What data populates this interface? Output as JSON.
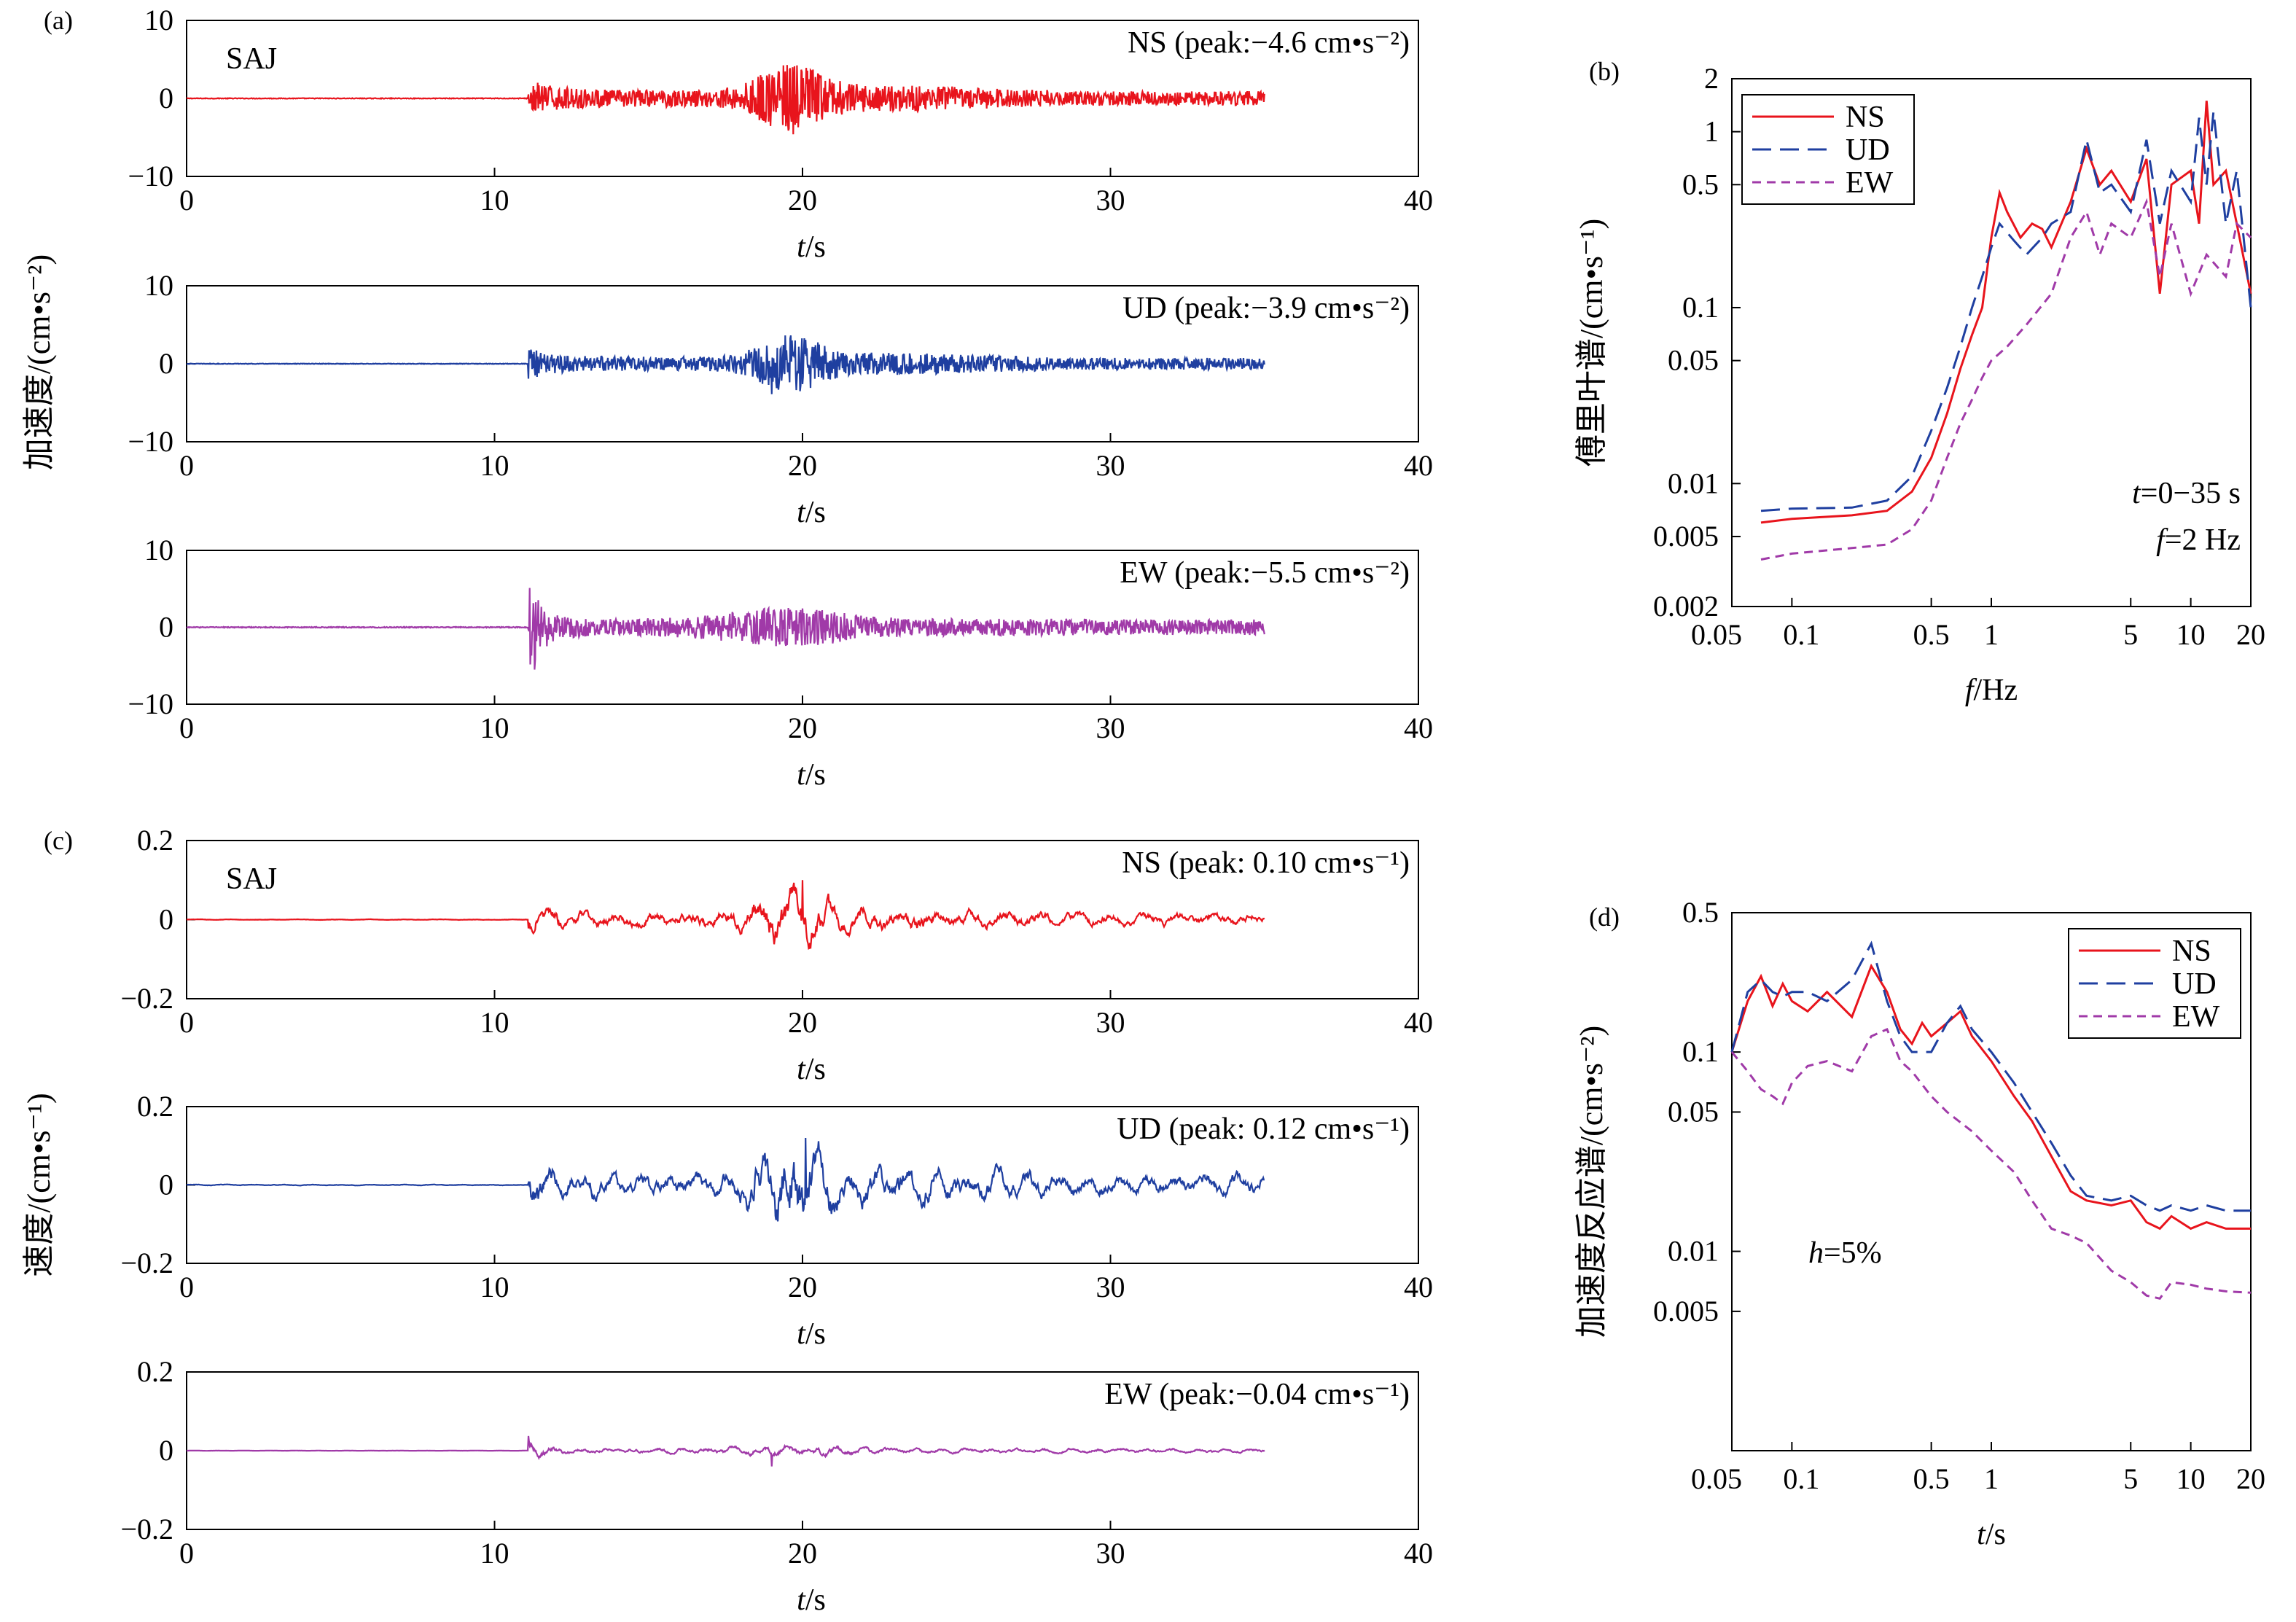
{
  "chart_data": [
    {
      "id": "a",
      "panel_label": "(a)",
      "station": "SAJ",
      "type": "line",
      "ylabel": "加速度/(cm•s⁻²)",
      "subplots": [
        {
          "component": "NS",
          "annotation": "NS (peak:−4.6 cm•s⁻²)",
          "color": "#e8141c",
          "peak": -4.6,
          "peak_time": 19.7,
          "ylim": [
            -10,
            10
          ],
          "yticks": [
            "10",
            "0",
            "−10"
          ],
          "xlim": [
            0,
            40
          ],
          "xticks": [
            "0",
            "10",
            "20",
            "30",
            "40"
          ],
          "xlabel": "t/s"
        },
        {
          "component": "UD",
          "annotation": "UD (peak:−3.9 cm•s⁻²)",
          "color": "#1f3fa0",
          "peak": -3.9,
          "peak_time": 19.0,
          "ylim": [
            -10,
            10
          ],
          "yticks": [
            "10",
            "0",
            "−10"
          ],
          "xlim": [
            0,
            40
          ],
          "xticks": [
            "0",
            "10",
            "20",
            "30",
            "40"
          ],
          "xlabel": "t/s"
        },
        {
          "component": "EW",
          "annotation": "EW (peak:−5.5 cm•s⁻²)",
          "color": "#a03aa8",
          "peak": -5.5,
          "peak_time": 11.3,
          "ylim": [
            -10,
            10
          ],
          "yticks": [
            "10",
            "0",
            "−10"
          ],
          "xlim": [
            0,
            40
          ],
          "xticks": [
            "0",
            "10",
            "20",
            "30",
            "40"
          ],
          "xlabel": "t/s"
        }
      ]
    },
    {
      "id": "b",
      "panel_label": "(b)",
      "type": "line",
      "xscale": "log",
      "yscale": "log",
      "xlim": [
        0.05,
        20
      ],
      "ylim": [
        0.002,
        2
      ],
      "xticks": [
        {
          "v": 0.05,
          "l": "0.05"
        },
        {
          "v": 0.1,
          "l": "0.1"
        },
        {
          "v": 0.5,
          "l": "0.5"
        },
        {
          "v": 1,
          "l": "1"
        },
        {
          "v": 5,
          "l": "5"
        },
        {
          "v": 10,
          "l": "10"
        },
        {
          "v": 20,
          "l": "20"
        }
      ],
      "yticks": [
        {
          "v": 0.002,
          "l": "0.002"
        },
        {
          "v": 0.005,
          "l": "0.005"
        },
        {
          "v": 0.01,
          "l": "0.01"
        },
        {
          "v": 0.05,
          "l": "0.05"
        },
        {
          "v": 0.1,
          "l": "0.1"
        },
        {
          "v": 0.5,
          "l": "0.5"
        },
        {
          "v": 1,
          "l": "1"
        },
        {
          "v": 2,
          "l": "2"
        }
      ],
      "xlabel": "f/Hz",
      "ylabel": "傅里叶谱/(cm•s⁻¹)",
      "annotations": [
        "t=0−35 s",
        "f=2 Hz"
      ],
      "legend": "top-left",
      "series": [
        {
          "name": "NS",
          "color": "#e8141c",
          "dash": "solid",
          "points": [
            [
              0.07,
              0.006
            ],
            [
              0.1,
              0.0063
            ],
            [
              0.2,
              0.0066
            ],
            [
              0.3,
              0.007
            ],
            [
              0.4,
              0.009
            ],
            [
              0.5,
              0.014
            ],
            [
              0.6,
              0.025
            ],
            [
              0.7,
              0.045
            ],
            [
              0.8,
              0.07
            ],
            [
              0.9,
              0.1
            ],
            [
              1.0,
              0.25
            ],
            [
              1.1,
              0.45
            ],
            [
              1.2,
              0.35
            ],
            [
              1.4,
              0.25
            ],
            [
              1.6,
              0.3
            ],
            [
              1.8,
              0.28
            ],
            [
              2.0,
              0.22
            ],
            [
              2.5,
              0.4
            ],
            [
              3.0,
              0.8
            ],
            [
              3.5,
              0.5
            ],
            [
              4.0,
              0.6
            ],
            [
              5.0,
              0.4
            ],
            [
              6.0,
              0.7
            ],
            [
              7.0,
              0.12
            ],
            [
              8.0,
              0.5
            ],
            [
              10,
              0.6
            ],
            [
              11,
              0.3
            ],
            [
              12,
              1.5
            ],
            [
              13,
              0.5
            ],
            [
              15,
              0.6
            ],
            [
              17,
              0.3
            ],
            [
              20,
              0.12
            ]
          ]
        },
        {
          "name": "UD",
          "color": "#1f3fa0",
          "dash": "long",
          "points": [
            [
              0.07,
              0.007
            ],
            [
              0.1,
              0.0072
            ],
            [
              0.2,
              0.0073
            ],
            [
              0.3,
              0.008
            ],
            [
              0.4,
              0.011
            ],
            [
              0.5,
              0.02
            ],
            [
              0.6,
              0.035
            ],
            [
              0.7,
              0.06
            ],
            [
              0.8,
              0.1
            ],
            [
              0.9,
              0.15
            ],
            [
              1.0,
              0.22
            ],
            [
              1.1,
              0.3
            ],
            [
              1.3,
              0.24
            ],
            [
              1.5,
              0.2
            ],
            [
              1.8,
              0.25
            ],
            [
              2.0,
              0.3
            ],
            [
              2.5,
              0.35
            ],
            [
              3.0,
              0.9
            ],
            [
              3.5,
              0.45
            ],
            [
              4.0,
              0.5
            ],
            [
              5.0,
              0.35
            ],
            [
              6.0,
              0.9
            ],
            [
              7.0,
              0.3
            ],
            [
              8.0,
              0.6
            ],
            [
              10,
              0.4
            ],
            [
              11,
              1.2
            ],
            [
              12,
              0.5
            ],
            [
              13,
              1.3
            ],
            [
              15,
              0.3
            ],
            [
              17,
              0.6
            ],
            [
              20,
              0.1
            ]
          ]
        },
        {
          "name": "EW",
          "color": "#a03aa8",
          "dash": "short",
          "points": [
            [
              0.07,
              0.0037
            ],
            [
              0.1,
              0.004
            ],
            [
              0.2,
              0.0043
            ],
            [
              0.3,
              0.0045
            ],
            [
              0.4,
              0.0055
            ],
            [
              0.5,
              0.008
            ],
            [
              0.6,
              0.014
            ],
            [
              0.7,
              0.022
            ],
            [
              0.8,
              0.03
            ],
            [
              0.9,
              0.04
            ],
            [
              1.0,
              0.05
            ],
            [
              1.2,
              0.06
            ],
            [
              1.5,
              0.08
            ],
            [
              2.0,
              0.12
            ],
            [
              2.5,
              0.25
            ],
            [
              3.0,
              0.35
            ],
            [
              3.5,
              0.2
            ],
            [
              4.0,
              0.3
            ],
            [
              5.0,
              0.25
            ],
            [
              6.0,
              0.4
            ],
            [
              7.0,
              0.15
            ],
            [
              8.0,
              0.3
            ],
            [
              10,
              0.12
            ],
            [
              12,
              0.2
            ],
            [
              15,
              0.15
            ],
            [
              17,
              0.3
            ],
            [
              20,
              0.25
            ]
          ]
        }
      ]
    },
    {
      "id": "c",
      "panel_label": "(c)",
      "station": "SAJ",
      "type": "line",
      "ylabel": "速度/(cm•s⁻¹)",
      "subplots": [
        {
          "component": "NS",
          "annotation": "NS (peak: 0.10 cm•s⁻¹)",
          "color": "#e8141c",
          "peak": 0.1,
          "peak_time": 20.0,
          "ylim": [
            -0.2,
            0.2
          ],
          "yticks": [
            "0.2",
            "0",
            "−0.2"
          ],
          "xlim": [
            0,
            40
          ],
          "xticks": [
            "0",
            "10",
            "20",
            "30",
            "40"
          ],
          "xlabel": "t/s"
        },
        {
          "component": "UD",
          "annotation": "UD (peak: 0.12 cm•s⁻¹)",
          "color": "#1f3fa0",
          "peak": 0.12,
          "peak_time": 20.1,
          "ylim": [
            -0.2,
            0.2
          ],
          "yticks": [
            "0.2",
            "0",
            "−0.2"
          ],
          "xlim": [
            0,
            40
          ],
          "xticks": [
            "0",
            "10",
            "20",
            "30",
            "40"
          ],
          "xlabel": "t/s"
        },
        {
          "component": "EW",
          "annotation": "EW (peak:−0.04 cm•s⁻¹)",
          "color": "#a03aa8",
          "peak": -0.04,
          "peak_time": 19.0,
          "ylim": [
            -0.2,
            0.2
          ],
          "yticks": [
            "0.2",
            "0",
            "−0.2"
          ],
          "xlim": [
            0,
            40
          ],
          "xticks": [
            "0",
            "10",
            "20",
            "30",
            "40"
          ],
          "xlabel": "t/s"
        }
      ]
    },
    {
      "id": "d",
      "panel_label": "(d)",
      "type": "line",
      "xscale": "log",
      "yscale": "log",
      "xlim": [
        0.05,
        20
      ],
      "ylim": [
        0.001,
        0.5
      ],
      "xticks": [
        {
          "v": 0.05,
          "l": "0.05"
        },
        {
          "v": 0.1,
          "l": "0.1"
        },
        {
          "v": 0.5,
          "l": "0.5"
        },
        {
          "v": 1,
          "l": "1"
        },
        {
          "v": 5,
          "l": "5"
        },
        {
          "v": 10,
          "l": "10"
        },
        {
          "v": 20,
          "l": "20"
        }
      ],
      "yticks": [
        {
          "v": 0.005,
          "l": "0.005"
        },
        {
          "v": 0.01,
          "l": "0.01"
        },
        {
          "v": 0.05,
          "l": "0.05"
        },
        {
          "v": 0.1,
          "l": "0.1"
        },
        {
          "v": 0.5,
          "l": "0.5"
        }
      ],
      "xlabel": "t/s",
      "ylabel": "加速度反应谱/(cm•s⁻²)",
      "annotations": [
        "h=5%"
      ],
      "legend": "top-right",
      "series": [
        {
          "name": "NS",
          "color": "#e8141c",
          "dash": "solid",
          "points": [
            [
              0.05,
              0.1
            ],
            [
              0.06,
              0.18
            ],
            [
              0.07,
              0.24
            ],
            [
              0.08,
              0.17
            ],
            [
              0.09,
              0.22
            ],
            [
              0.1,
              0.18
            ],
            [
              0.12,
              0.16
            ],
            [
              0.15,
              0.2
            ],
            [
              0.2,
              0.15
            ],
            [
              0.25,
              0.27
            ],
            [
              0.3,
              0.2
            ],
            [
              0.35,
              0.13
            ],
            [
              0.4,
              0.11
            ],
            [
              0.45,
              0.14
            ],
            [
              0.5,
              0.12
            ],
            [
              0.6,
              0.14
            ],
            [
              0.7,
              0.16
            ],
            [
              0.8,
              0.12
            ],
            [
              1.0,
              0.09
            ],
            [
              1.3,
              0.06
            ],
            [
              1.6,
              0.045
            ],
            [
              2.0,
              0.03
            ],
            [
              2.5,
              0.02
            ],
            [
              3.0,
              0.018
            ],
            [
              4.0,
              0.017
            ],
            [
              5.0,
              0.018
            ],
            [
              6.0,
              0.014
            ],
            [
              7.0,
              0.013
            ],
            [
              8.0,
              0.015
            ],
            [
              10,
              0.013
            ],
            [
              12,
              0.014
            ],
            [
              15,
              0.013
            ],
            [
              20,
              0.013
            ]
          ]
        },
        {
          "name": "UD",
          "color": "#1f3fa0",
          "dash": "long",
          "points": [
            [
              0.05,
              0.1
            ],
            [
              0.06,
              0.2
            ],
            [
              0.07,
              0.23
            ],
            [
              0.08,
              0.2
            ],
            [
              0.09,
              0.19
            ],
            [
              0.1,
              0.2
            ],
            [
              0.12,
              0.2
            ],
            [
              0.15,
              0.18
            ],
            [
              0.2,
              0.23
            ],
            [
              0.25,
              0.35
            ],
            [
              0.3,
              0.18
            ],
            [
              0.35,
              0.12
            ],
            [
              0.4,
              0.1
            ],
            [
              0.45,
              0.1
            ],
            [
              0.5,
              0.1
            ],
            [
              0.6,
              0.14
            ],
            [
              0.7,
              0.17
            ],
            [
              0.8,
              0.13
            ],
            [
              1.0,
              0.1
            ],
            [
              1.3,
              0.07
            ],
            [
              1.6,
              0.05
            ],
            [
              2.0,
              0.035
            ],
            [
              2.5,
              0.024
            ],
            [
              3.0,
              0.019
            ],
            [
              4.0,
              0.018
            ],
            [
              5.0,
              0.019
            ],
            [
              6.0,
              0.017
            ],
            [
              7.0,
              0.016
            ],
            [
              8.0,
              0.017
            ],
            [
              10,
              0.016
            ],
            [
              12,
              0.017
            ],
            [
              15,
              0.016
            ],
            [
              20,
              0.016
            ]
          ]
        },
        {
          "name": "EW",
          "color": "#a03aa8",
          "dash": "short",
          "points": [
            [
              0.05,
              0.1
            ],
            [
              0.06,
              0.08
            ],
            [
              0.07,
              0.065
            ],
            [
              0.08,
              0.06
            ],
            [
              0.09,
              0.055
            ],
            [
              0.1,
              0.07
            ],
            [
              0.12,
              0.085
            ],
            [
              0.15,
              0.09
            ],
            [
              0.2,
              0.08
            ],
            [
              0.25,
              0.12
            ],
            [
              0.3,
              0.13
            ],
            [
              0.35,
              0.09
            ],
            [
              0.4,
              0.08
            ],
            [
              0.5,
              0.06
            ],
            [
              0.6,
              0.05
            ],
            [
              0.8,
              0.04
            ],
            [
              1.0,
              0.032
            ],
            [
              1.3,
              0.025
            ],
            [
              1.6,
              0.018
            ],
            [
              2.0,
              0.013
            ],
            [
              2.5,
              0.012
            ],
            [
              3.0,
              0.011
            ],
            [
              4.0,
              0.008
            ],
            [
              5.0,
              0.007
            ],
            [
              6.0,
              0.006
            ],
            [
              7.0,
              0.0058
            ],
            [
              8.0,
              0.007
            ],
            [
              10,
              0.0068
            ],
            [
              12,
              0.0065
            ],
            [
              15,
              0.0063
            ],
            [
              20,
              0.0062
            ]
          ]
        }
      ]
    }
  ]
}
